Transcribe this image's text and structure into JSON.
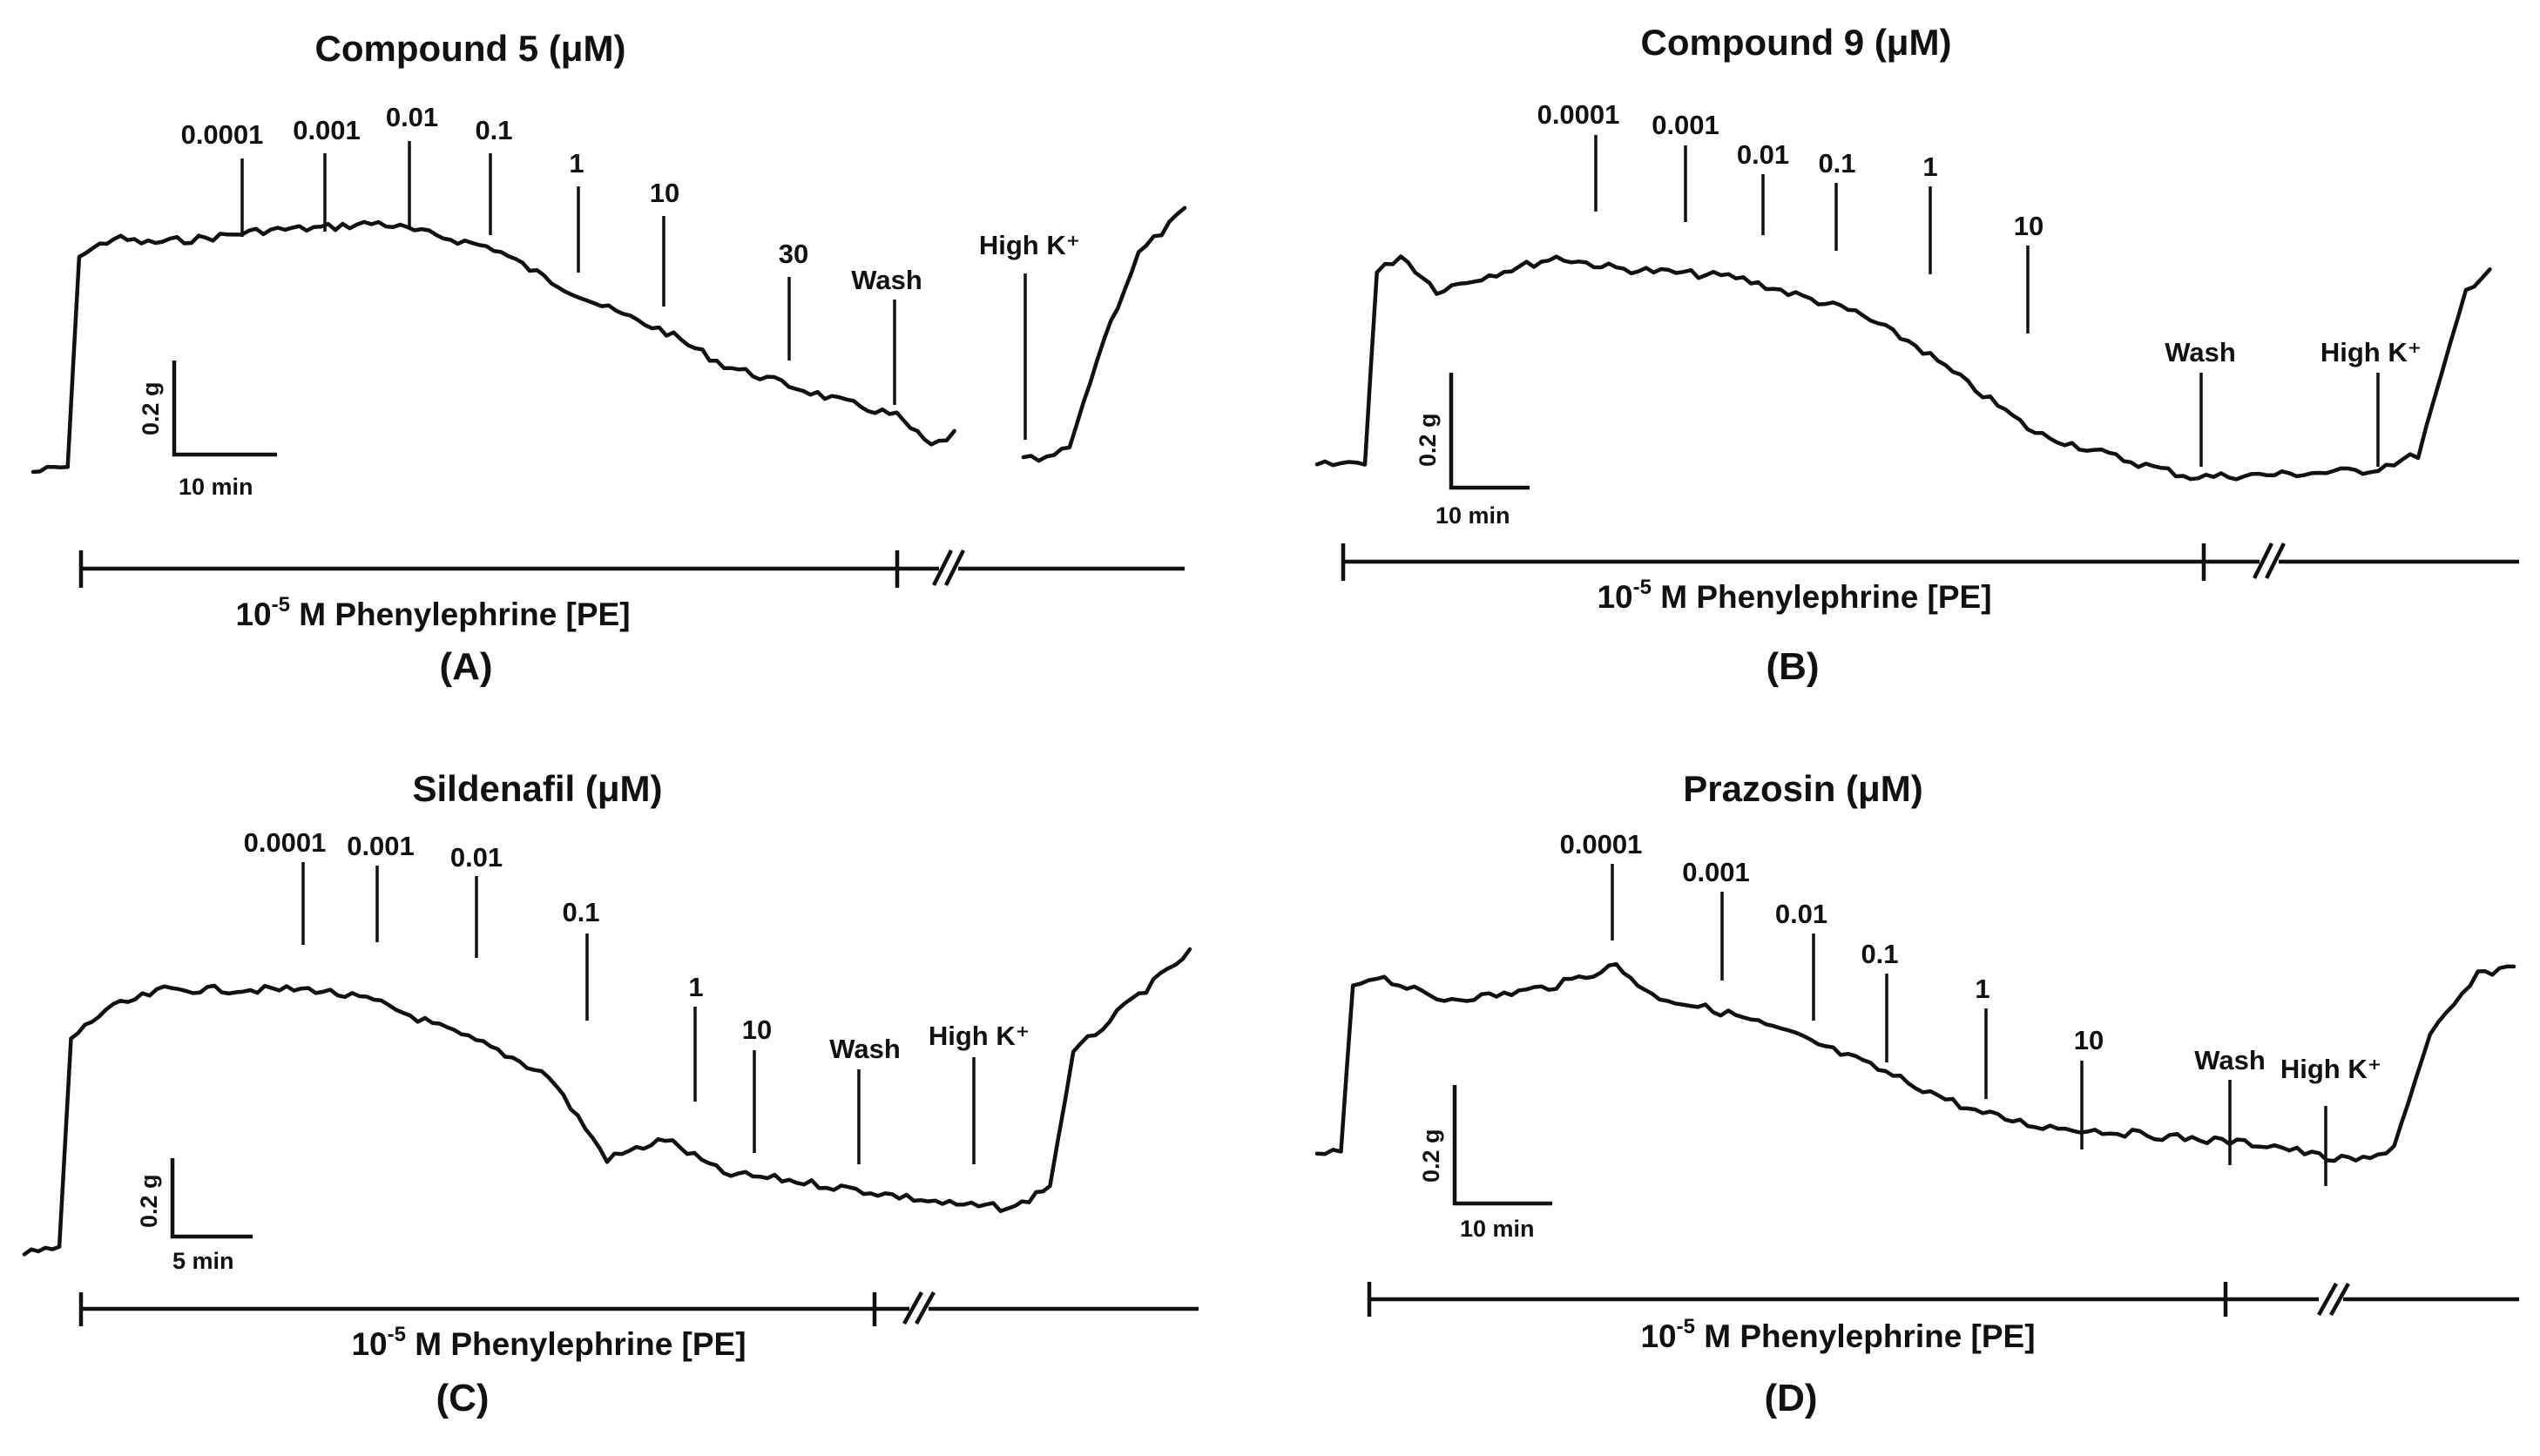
{
  "chart_data": [
    {
      "panel": "(A)",
      "type": "line",
      "title": "Compound 5 (μM)",
      "doses": [
        "0.0001",
        "0.001",
        "0.01",
        "0.1",
        "1",
        "10",
        "30"
      ],
      "events": [
        "Wash",
        "High K⁺"
      ],
      "scale_bar": {
        "y": "0.2 g",
        "x": "10 min"
      },
      "bar_label": "10-5 M Phenylephrine [PE]",
      "pe_conc_base": "10",
      "pe_conc_exp": "-5",
      "pe_rest": " M Phenylephrine [PE]",
      "trace": [
        [
          0.0,
          0.0
        ],
        [
          0.03,
          0.02
        ],
        [
          0.04,
          0.85
        ],
        [
          0.07,
          0.92
        ],
        [
          0.1,
          0.9
        ],
        [
          0.15,
          0.92
        ],
        [
          0.2,
          0.95
        ],
        [
          0.25,
          0.96
        ],
        [
          0.3,
          0.98
        ],
        [
          0.35,
          0.93
        ],
        [
          0.4,
          0.88
        ],
        [
          0.45,
          0.75
        ],
        [
          0.5,
          0.64
        ],
        [
          0.55,
          0.55
        ],
        [
          0.6,
          0.42
        ],
        [
          0.65,
          0.35
        ],
        [
          0.7,
          0.28
        ],
        [
          0.75,
          0.22
        ],
        [
          0.78,
          0.1
        ],
        [
          0.8,
          0.15
        ]
      ],
      "trace_after_break": [
        [
          0.86,
          0.0
        ],
        [
          0.88,
          0.0
        ],
        [
          0.9,
          0.05
        ],
        [
          0.93,
          0.5
        ],
        [
          0.96,
          0.85
        ],
        [
          1.0,
          1.03
        ]
      ]
    },
    {
      "panel": "(B)",
      "type": "line",
      "title": "Compound 9 (μM)",
      "doses": [
        "0.0001",
        "0.001",
        "0.01",
        "0.1",
        "1",
        "10"
      ],
      "events": [
        "Wash",
        "High K⁺"
      ],
      "scale_bar": {
        "y": "0.2 g",
        "x": "10 min"
      },
      "bar_label": "10-5 M Phenylephrine [PE]",
      "pe_conc_base": "10",
      "pe_conc_exp": "-5",
      "pe_rest": " M Phenylephrine [PE]",
      "trace": [
        [
          0.0,
          0.0
        ],
        [
          0.04,
          0.02
        ],
        [
          0.05,
          0.88
        ],
        [
          0.07,
          0.96
        ],
        [
          0.1,
          0.8
        ],
        [
          0.15,
          0.88
        ],
        [
          0.2,
          0.95
        ],
        [
          0.25,
          0.9
        ],
        [
          0.3,
          0.88
        ],
        [
          0.35,
          0.86
        ],
        [
          0.4,
          0.78
        ],
        [
          0.45,
          0.7
        ],
        [
          0.5,
          0.55
        ],
        [
          0.55,
          0.35
        ],
        [
          0.6,
          0.15
        ],
        [
          0.68,
          0.02
        ],
        [
          0.73,
          -0.05
        ],
        [
          0.8,
          -0.04
        ],
        [
          0.88,
          -0.02
        ],
        [
          0.92,
          0.05
        ],
        [
          0.96,
          0.8
        ],
        [
          0.98,
          0.9
        ]
      ]
    },
    {
      "panel": "(C)",
      "type": "line",
      "title": "Sildenafil (μM)",
      "doses": [
        "0.0001",
        "0.001",
        "0.01",
        "0.1",
        "1",
        "10"
      ],
      "events": [
        "Wash",
        "High K⁺"
      ],
      "scale_bar": {
        "y": "0.2 g",
        "x": "5 min"
      },
      "bar_label": "10-5 M Phenylephrine [PE]",
      "pe_conc_base": "10",
      "pe_conc_exp": "-5",
      "pe_rest": " M Phenylephrine [PE]",
      "trace": [
        [
          0.0,
          0.0
        ],
        [
          0.03,
          0.02
        ],
        [
          0.04,
          0.75
        ],
        [
          0.07,
          0.85
        ],
        [
          0.12,
          0.92
        ],
        [
          0.2,
          0.92
        ],
        [
          0.25,
          0.92
        ],
        [
          0.3,
          0.88
        ],
        [
          0.4,
          0.72
        ],
        [
          0.45,
          0.62
        ],
        [
          0.5,
          0.33
        ],
        [
          0.55,
          0.4
        ],
        [
          0.6,
          0.28
        ],
        [
          0.65,
          0.26
        ],
        [
          0.72,
          0.22
        ],
        [
          0.8,
          0.17
        ],
        [
          0.85,
          0.16
        ],
        [
          0.88,
          0.24
        ],
        [
          0.9,
          0.7
        ],
        [
          0.95,
          0.88
        ],
        [
          1.0,
          1.05
        ]
      ]
    },
    {
      "panel": "(D)",
      "type": "line",
      "title": "Prazosin (μM)",
      "doses": [
        "0.0001",
        "0.001",
        "0.01",
        "0.1",
        "1",
        "10"
      ],
      "events": [
        "Wash",
        "High K⁺"
      ],
      "scale_bar": {
        "y": "0.2 g",
        "x": "10 min"
      },
      "bar_label": "10-5 M Phenylephrine [PE]",
      "pe_conc_base": "10",
      "pe_conc_exp": "-5",
      "pe_rest": " M Phenylephrine [PE]",
      "trace": [
        [
          0.0,
          0.0
        ],
        [
          0.02,
          0.02
        ],
        [
          0.03,
          0.85
        ],
        [
          0.05,
          0.9
        ],
        [
          0.1,
          0.78
        ],
        [
          0.15,
          0.8
        ],
        [
          0.2,
          0.85
        ],
        [
          0.25,
          0.95
        ],
        [
          0.28,
          0.8
        ],
        [
          0.35,
          0.7
        ],
        [
          0.4,
          0.6
        ],
        [
          0.45,
          0.48
        ],
        [
          0.5,
          0.35
        ],
        [
          0.55,
          0.22
        ],
        [
          0.6,
          0.15
        ],
        [
          0.7,
          0.1
        ],
        [
          0.8,
          0.05
        ],
        [
          0.85,
          -0.02
        ],
        [
          0.88,
          -0.02
        ],
        [
          0.9,
          0.05
        ],
        [
          0.93,
          0.6
        ],
        [
          0.97,
          0.9
        ],
        [
          1.0,
          0.95
        ]
      ]
    }
  ]
}
